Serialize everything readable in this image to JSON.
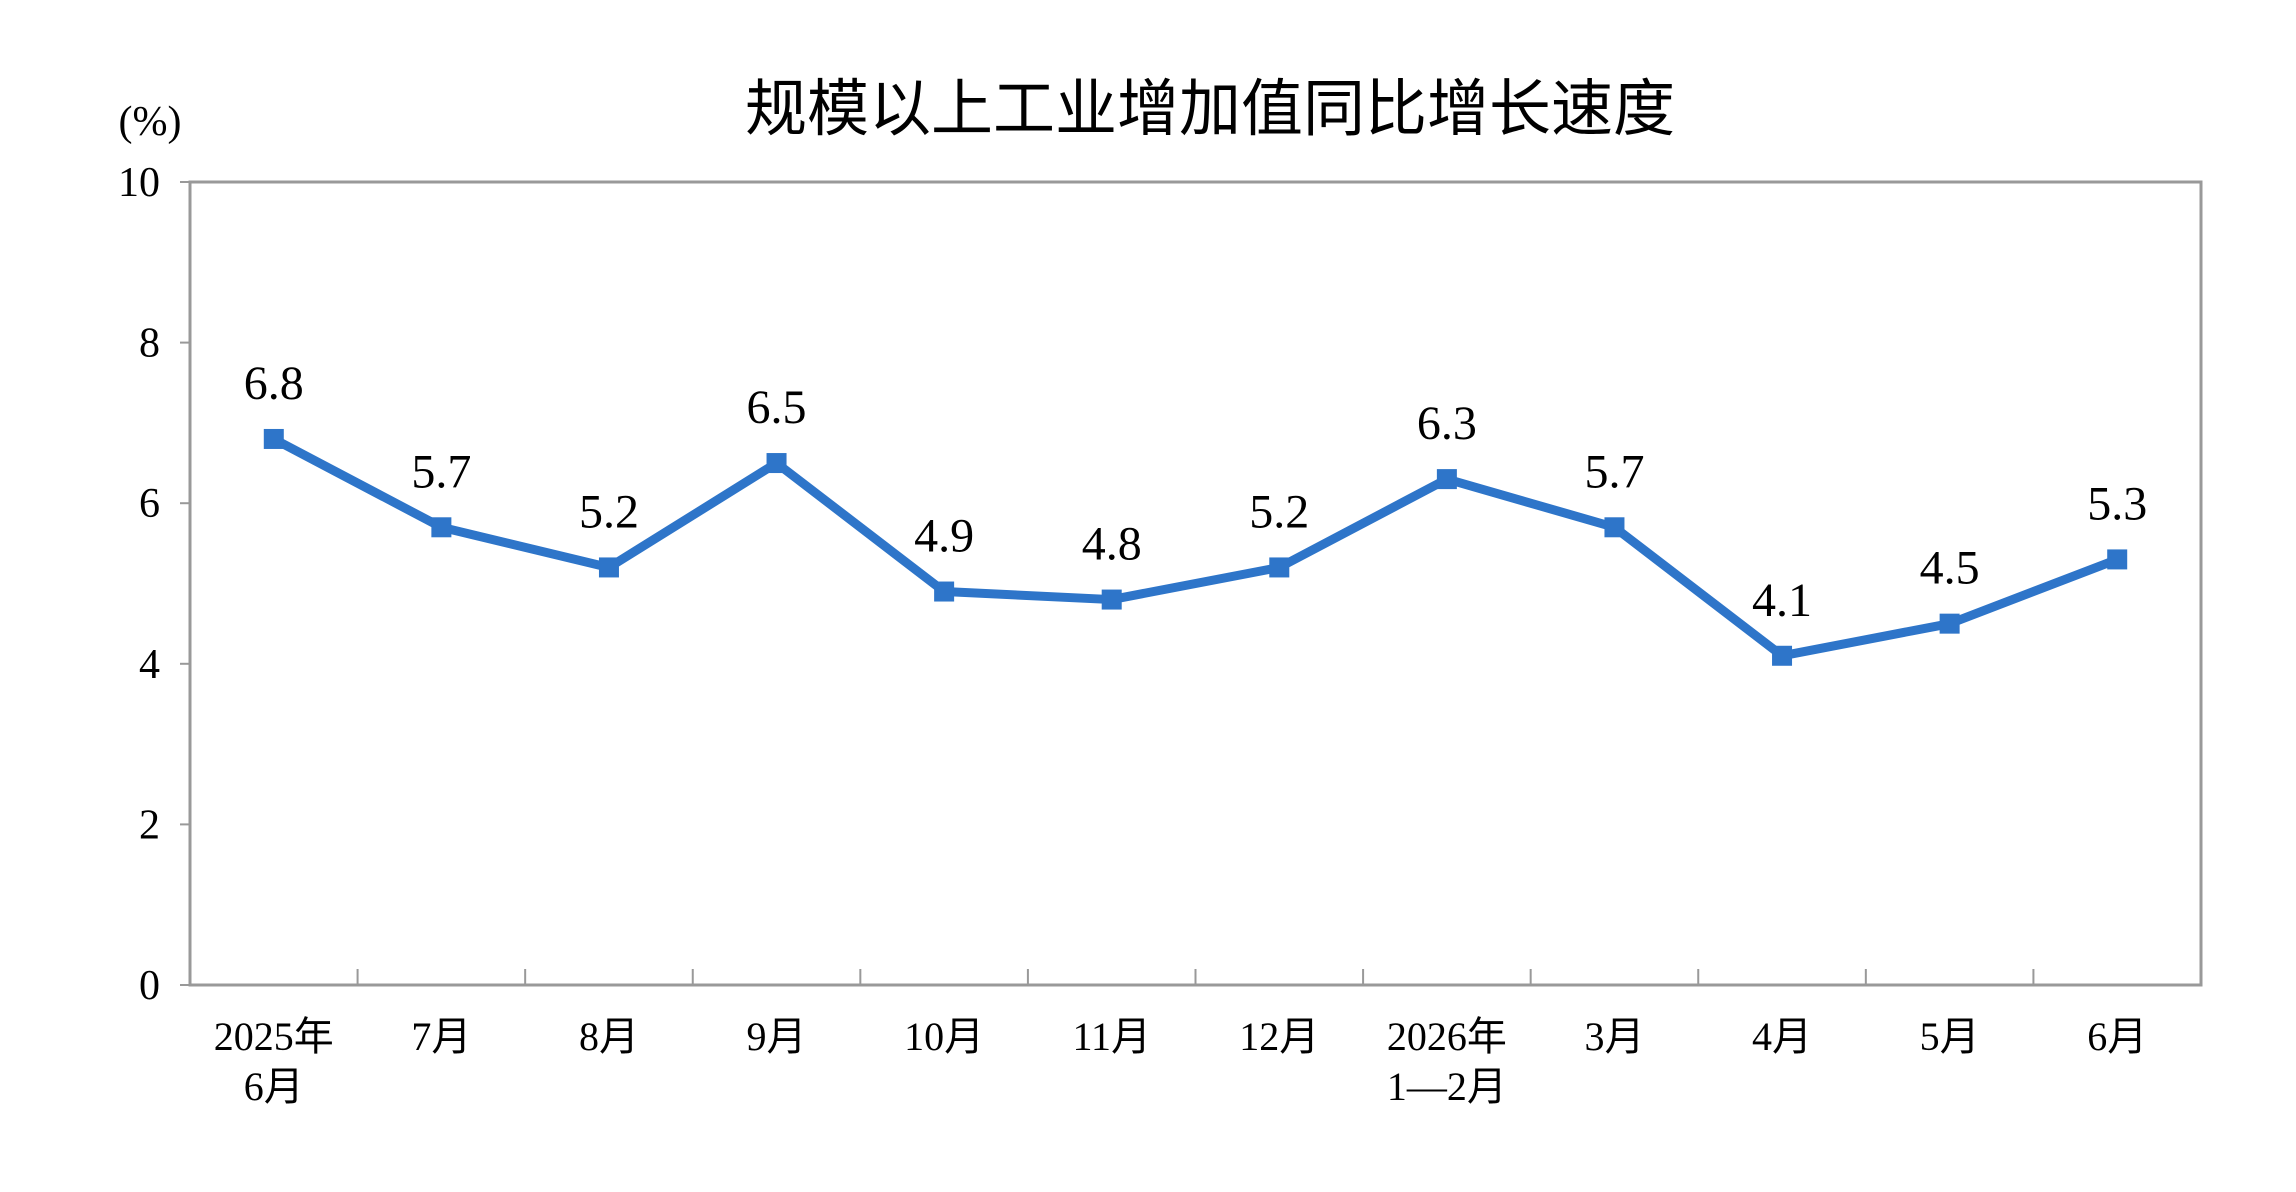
{
  "chart_data": {
    "type": "line",
    "title": "规模以上工业增加值同比增长速度",
    "unit_label": "(%)",
    "xlabel": "",
    "ylabel": "",
    "ylim": [
      0,
      10
    ],
    "yticks": [
      0,
      2,
      4,
      6,
      8,
      10
    ],
    "grid": false,
    "legend": "none",
    "categories": [
      [
        "2025年",
        "6月"
      ],
      [
        "7月"
      ],
      [
        "8月"
      ],
      [
        "9月"
      ],
      [
        "10月"
      ],
      [
        "11月"
      ],
      [
        "12月"
      ],
      [
        "2026年",
        "1—2月"
      ],
      [
        "3月"
      ],
      [
        "4月"
      ],
      [
        "5月"
      ],
      [
        "6月"
      ]
    ],
    "series": [
      {
        "values": [
          6.8,
          5.7,
          5.2,
          6.5,
          4.9,
          4.8,
          5.2,
          6.3,
          5.7,
          4.1,
          4.5,
          5.3
        ],
        "labels": [
          "6.8",
          "5.7",
          "5.2",
          "6.5",
          "4.9",
          "4.8",
          "5.2",
          "6.3",
          "5.7",
          "4.1",
          "4.5",
          "5.3"
        ],
        "color": "#2E75C9",
        "marker": "square"
      }
    ],
    "axis_color": "#999999"
  }
}
